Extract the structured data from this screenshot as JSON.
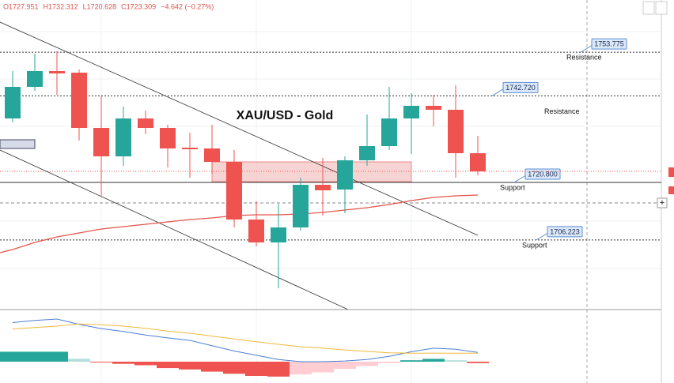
{
  "chart_data": {
    "type": "candlestick",
    "title": "XAU/USD - Gold",
    "ohlc_legend": [
      "O1727.951",
      "H1732.312",
      "L1720.628",
      "C1723.309",
      "−4.642 (−0.27%)"
    ],
    "up_color": "#26a69a",
    "down_color": "#ef5350",
    "ylim": [
      1688.6,
      1767
    ],
    "open": [
      1737,
      1745,
      1749,
      1748.6,
      1734.6,
      1727.4,
      1737,
      1734.6,
      1729.6,
      1729.4,
      1726,
      1711.4,
      1705.6,
      1709.4,
      1720.2,
      1719,
      1726.4,
      1730,
      1737,
      1740.2,
      1739.2,
      1728.2
    ],
    "high": [
      1749,
      1753.4,
      1754,
      1749.4,
      1742.6,
      1740,
      1739,
      1735.4,
      1733.4,
      1735.4,
      1729,
      1716,
      1715.4,
      1722,
      1727,
      1727.4,
      1738,
      1745,
      1743.4,
      1743,
      1745.4,
      1732.6
    ],
    "low": [
      1736,
      1744,
      1743,
      1731.4,
      1717.4,
      1725,
      1733,
      1724.6,
      1722,
      1723,
      1709.4,
      1704.6,
      1694,
      1708.6,
      1712.4,
      1713,
      1725,
      1729,
      1728,
      1735,
      1722,
      1722.6
    ],
    "close": [
      1745,
      1749,
      1748.4,
      1734.6,
      1727.4,
      1737,
      1734.6,
      1729.4,
      1729.2,
      1726,
      1711.4,
      1705.6,
      1709.4,
      1720.2,
      1718.8,
      1726.4,
      1730,
      1737,
      1740.2,
      1739.2,
      1728.2,
      1723.6
    ],
    "moving_average": {
      "color": "#e5544b",
      "values": [
        1703.8,
        1705.6,
        1707,
        1708,
        1709,
        1709.6,
        1710.2,
        1710.8,
        1711.4,
        1711.8,
        1712.4,
        1712.6,
        1712.6,
        1712.8,
        1713.2,
        1713.8,
        1714.4,
        1715.2,
        1716.2,
        1717,
        1717.4,
        1717.6
      ]
    },
    "annotations": [
      {
        "value": 1753.775,
        "label": "1753.775",
        "text": "Resistance"
      },
      {
        "value": 1742.72,
        "label": "1742.720",
        "text": "Resistance"
      },
      {
        "value": 1720.8,
        "label": "1720.800",
        "text": "Support"
      },
      {
        "value": 1706.223,
        "label": "1706.223",
        "text": "Support"
      }
    ],
    "macd": {
      "ylim": [
        -6,
        14
      ],
      "histogram": [
        2.8,
        2.8,
        2.8,
        0.8,
        -0.2,
        -0.6,
        -1,
        -1.8,
        -2.2,
        -2.8,
        -3.4,
        -4,
        -4.2,
        -3.6,
        -3,
        -2,
        -1.2,
        -0.4,
        0.4,
        0.8,
        0.4,
        -0.4
      ],
      "macd_line": {
        "color": "#4a7fd4",
        "values": [
          11,
          11.6,
          12,
          10.5,
          9.3,
          8.5,
          7.5,
          6.7,
          6,
          4.5,
          3,
          1.8,
          0.6,
          0,
          0,
          0.2,
          0.6,
          1.5,
          2.8,
          3.8,
          3.5,
          2.6
        ]
      },
      "signal_line": {
        "color": "#f0b83c",
        "values": [
          9.2,
          9.6,
          10,
          10.6,
          10.4,
          10,
          9.4,
          8.6,
          8,
          7.2,
          6.4,
          5.6,
          4.9,
          4.2,
          3.8,
          3.3,
          2.9,
          2.5,
          2.4,
          2.4,
          2.4,
          2.4
        ]
      }
    }
  }
}
